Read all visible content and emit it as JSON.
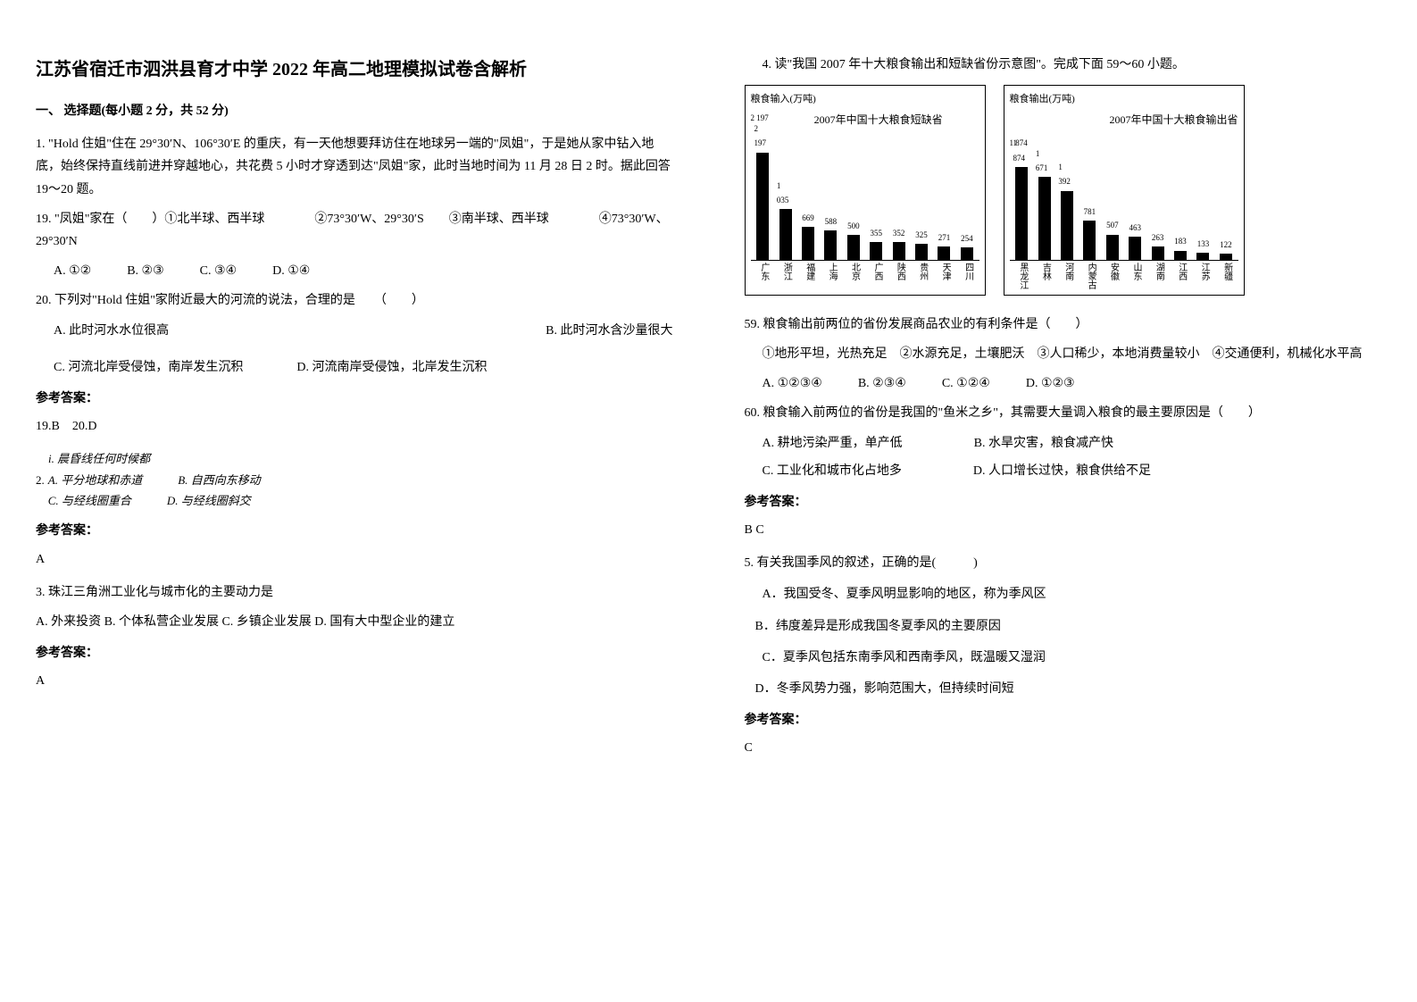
{
  "title": "江苏省宿迁市泗洪县育才中学 2022 年高二地理模拟试卷含解析",
  "section1": "一、 选择题(每小题 2 分，共 52 分)",
  "q1": {
    "text": "1. \"Hold 住姐\"住在 29°30′N、106°30′E 的重庆，有一天他想要拜访住在地球另一端的\"凤姐\"，于是她从家中钻入地底，始终保持直线前进并穿越地心，共花费 5 小时才穿透到达\"凤姐\"家，此时当地时间为 11 月 28 日 2 时。据此回答 19～20 题。",
    "sub19": "19. \"凤姐\"家在（　　）①北半球、西半球　　　　②73°30′W、29°30′S　　③南半球、西半球　　　　④73°30′W、29°30′N",
    "opts19": {
      "a": "A. ①②",
      "b": "B. ②③",
      "c": "C. ③④",
      "d": "D. ①④"
    },
    "sub20": "20. 下列对\"Hold 住姐\"家附近最大的河流的说法，合理的是　　（　　）",
    "opts20": {
      "a": "A. 此时河水水位很高",
      "b": "B. 此时河水含沙量很大",
      "c": "C. 河流北岸受侵蚀，南岸发生沉积",
      "d": "D. 河流南岸受侵蚀，北岸发生沉积"
    },
    "ansLabel": "参考答案：",
    "ans": "19.B　20.D"
  },
  "q2": {
    "prefix": "2.",
    "line1": "i. 晨昏线任何时候都",
    "optA": "A. 平分地球和赤道",
    "optB": "B. 自西向东移动",
    "optC": "C. 与经线圈重合",
    "optD": "D. 与经线圈斜交",
    "ansLabel": "参考答案：",
    "ans": "A"
  },
  "q3": {
    "text": "3. 珠江三角洲工业化与城市化的主要动力是",
    "opts": "A. 外来投资 B. 个体私营企业发展 C. 乡镇企业发展 D. 国有大中型企业的建立",
    "ansLabel": "参考答案：",
    "ans": "A"
  },
  "q4": {
    "text": "4. 读\"我国 2007 年十大粮食输出和短缺省份示意图\"。完成下面 59～60 小题。",
    "chart1": {
      "ylabel": "粮食输入(万吨)",
      "title": "2007年中国十大粮食短缺省",
      "top_value": "2 197",
      "categories": [
        "广东",
        "浙江",
        "福建",
        "上海",
        "北京",
        "广西",
        "陕西",
        "贵州",
        "天津",
        "四川"
      ],
      "values": [
        2197,
        1035,
        669,
        588,
        500,
        355,
        352,
        325,
        271,
        254
      ],
      "max": 2197,
      "bar_color": "#000000"
    },
    "chart2": {
      "ylabel": "粮食输出(万吨)",
      "title": "2007年中国十大粮食输出省",
      "top_value": "1 874",
      "categories": [
        "黑龙江",
        "吉林",
        "河南",
        "内蒙古",
        "安徽",
        "山东",
        "湖南",
        "江西",
        "江苏",
        "新疆"
      ],
      "values": [
        1874,
        1671,
        1392,
        781,
        507,
        463,
        263,
        183,
        133,
        122
      ],
      "max": 1874,
      "bar_color": "#000000"
    },
    "sub59": "59. 粮食输出前两位的省份发展商品农业的有利条件是（　　）",
    "sub59opts": "①地形平坦，光热充足　②水源充足，土壤肥沃　③人口稀少，本地消费量较小　④交通便利，机械化水平高",
    "opts59": {
      "a": "A. ①②③④",
      "b": "B. ②③④",
      "c": "C. ①②④",
      "d": "D. ①②③"
    },
    "sub60": "60. 粮食输入前两位的省份是我国的\"鱼米之乡\"，其需要大量调入粮食的最主要原因是（　　）",
    "opts60": {
      "a": "A. 耕地污染严重，单产低",
      "b": "B. 水旱灾害，粮食减产快",
      "c": "C. 工业化和城市化占地多",
      "d": "D. 人口增长过快，粮食供给不足"
    },
    "ansLabel": "参考答案：",
    "ans": "B C"
  },
  "q5": {
    "text": "5. 有关我国季风的叙述，正确的是(　　　)",
    "optA": "A．我国受冬、夏季风明显影响的地区，称为季风区",
    "optB": "B．纬度差异是形成我国冬夏季风的主要原因",
    "optC": "C．夏季风包括东南季风和西南季风，既温暖又湿润",
    "optD": "D．冬季风势力强，影响范围大，但持续时间短",
    "ansLabel": "参考答案：",
    "ans": "C"
  }
}
